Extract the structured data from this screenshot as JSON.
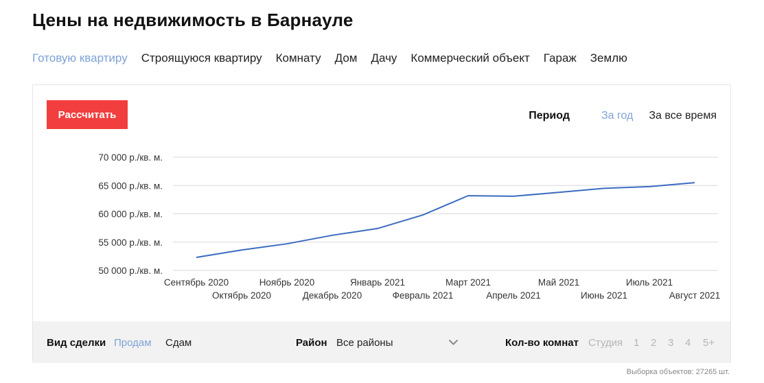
{
  "page": {
    "title": "Цены на недвижимость в Барнауле"
  },
  "tabs": [
    {
      "label": "Готовую квартиру",
      "active": true
    },
    {
      "label": "Строящуюся квартиру",
      "active": false
    },
    {
      "label": "Комнату",
      "active": false
    },
    {
      "label": "Дом",
      "active": false
    },
    {
      "label": "Дачу",
      "active": false
    },
    {
      "label": "Коммерческий объект",
      "active": false
    },
    {
      "label": "Гараж",
      "active": false
    },
    {
      "label": "Землю",
      "active": false
    }
  ],
  "card": {
    "calc_button": "Рассчитать",
    "period": {
      "label": "Период",
      "options": [
        {
          "label": "За год",
          "active": true
        },
        {
          "label": "За все время",
          "active": false
        }
      ]
    }
  },
  "chart_data": {
    "type": "line",
    "x": [
      "Сентябрь 2020",
      "Октябрь 2020",
      "Ноябрь 2020",
      "Декабрь 2020",
      "Январь 2021",
      "Февраль 2021",
      "Март 2021",
      "Апрель 2021",
      "Май 2021",
      "Июнь 2021",
      "Июль 2021",
      "Август 2021"
    ],
    "series": [
      {
        "values": [
          52300,
          53600,
          54700,
          56200,
          57400,
          59800,
          63200,
          63100,
          63800,
          64500,
          64800,
          65500
        ],
        "color": "#3b6bc0"
      }
    ],
    "y_ticks": [
      {
        "value": 70000,
        "label": "70 000 р./кв. м."
      },
      {
        "value": 65000,
        "label": "65 000 р./кв. м."
      },
      {
        "value": 60000,
        "label": "60 000 р./кв. м."
      },
      {
        "value": 55000,
        "label": "55 000 р./кв. м."
      },
      {
        "value": 50000,
        "label": "50 000 р./кв. м."
      }
    ],
    "ylim": [
      50000,
      70000
    ],
    "grid": true,
    "title": "",
    "xlabel": "",
    "ylabel": ""
  },
  "filters": {
    "deal": {
      "label": "Вид сделки",
      "options": [
        {
          "label": "Продам",
          "active": true
        },
        {
          "label": "Сдам",
          "active": false
        }
      ]
    },
    "district": {
      "label": "Район",
      "value": "Все районы"
    },
    "rooms": {
      "label": "Кол-во комнат",
      "options": [
        "Студия",
        "1",
        "2",
        "3",
        "4",
        "5+"
      ]
    }
  },
  "footer": {
    "sample_count": "Выборка объектов: 27265 шт."
  },
  "colors": {
    "accent_blue": "#7ea2d6",
    "button_red": "#f23e3e",
    "line": "#3b6bc0",
    "grid": "#d9d9d9",
    "filter_bg": "#f2f2f2"
  }
}
